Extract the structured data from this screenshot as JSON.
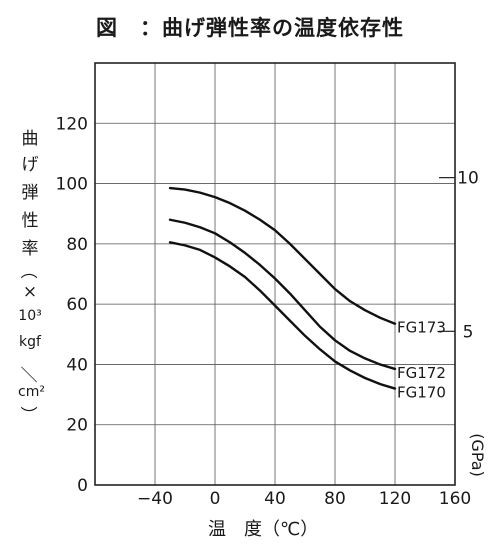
{
  "chart_data": {
    "type": "line",
    "title": "図　：曲げ弾性率の温度依存性",
    "xlabel": "温　度（℃）",
    "ylabel_chars": [
      "曲",
      "げ",
      "弾",
      "性",
      "率",
      "（",
      "×",
      "10³",
      "kgf",
      "／",
      "cm²",
      "）"
    ],
    "y2label": "(GPa)",
    "x_ticks": [
      "−40",
      "0",
      "40",
      "80",
      "120",
      "160"
    ],
    "y_ticks": [
      "0",
      "20",
      "40",
      "60",
      "80",
      "100",
      "120"
    ],
    "y2_ticks": [
      "5",
      "10"
    ],
    "xlim": [
      -80,
      160
    ],
    "ylim": [
      0,
      140
    ],
    "grid": true,
    "series": [
      {
        "name": "FG173",
        "x": [
          -30,
          -20,
          -10,
          0,
          10,
          20,
          30,
          40,
          50,
          60,
          70,
          80,
          90,
          100,
          110,
          120
        ],
        "y": [
          98.5,
          98,
          97,
          95.5,
          93.5,
          91,
          88,
          84.5,
          80,
          75,
          70,
          65,
          61,
          58,
          55.5,
          53.5
        ]
      },
      {
        "name": "FG172",
        "x": [
          -30,
          -20,
          -10,
          0,
          10,
          20,
          30,
          40,
          50,
          60,
          70,
          80,
          90,
          100,
          110,
          120
        ],
        "y": [
          88,
          87,
          85.5,
          83.5,
          80.5,
          77,
          73,
          68.5,
          63.5,
          58,
          52.5,
          48,
          44.5,
          42,
          40,
          38.5
        ]
      },
      {
        "name": "FG170",
        "x": [
          -30,
          -20,
          -10,
          0,
          10,
          20,
          30,
          40,
          50,
          60,
          70,
          80,
          90,
          100,
          110,
          120
        ],
        "y": [
          80.5,
          79.5,
          78,
          75.5,
          72.5,
          69,
          64.5,
          59.5,
          54.5,
          49.5,
          45,
          41,
          38,
          35.5,
          33.5,
          32
        ]
      }
    ]
  }
}
